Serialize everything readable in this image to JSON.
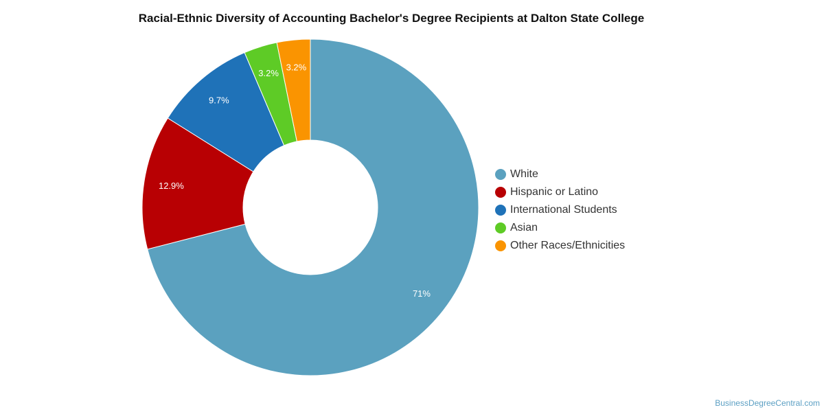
{
  "chart_data": {
    "type": "pie",
    "variant": "donut",
    "title": "Racial-Ethnic Diversity of Accounting Bachelor's Degree Recipients at Dalton State College",
    "slices": [
      {
        "name": "White",
        "value": 71,
        "label": "71%",
        "color": "#5ba1bf"
      },
      {
        "name": "Hispanic or Latino",
        "value": 12.9,
        "label": "12.9%",
        "color": "#b80003"
      },
      {
        "name": "International Students",
        "value": 9.7,
        "label": "9.7%",
        "color": "#1f72b8"
      },
      {
        "name": "Asian",
        "value": 3.2,
        "label": "3.2%",
        "color": "#5ecb26"
      },
      {
        "name": "Other Races/Ethnicities",
        "value": 3.2,
        "label": "3.2%",
        "color": "#fa9401"
      }
    ],
    "legend_position": "right"
  },
  "footer": {
    "source": "BusinessDegreeCentral.com"
  }
}
